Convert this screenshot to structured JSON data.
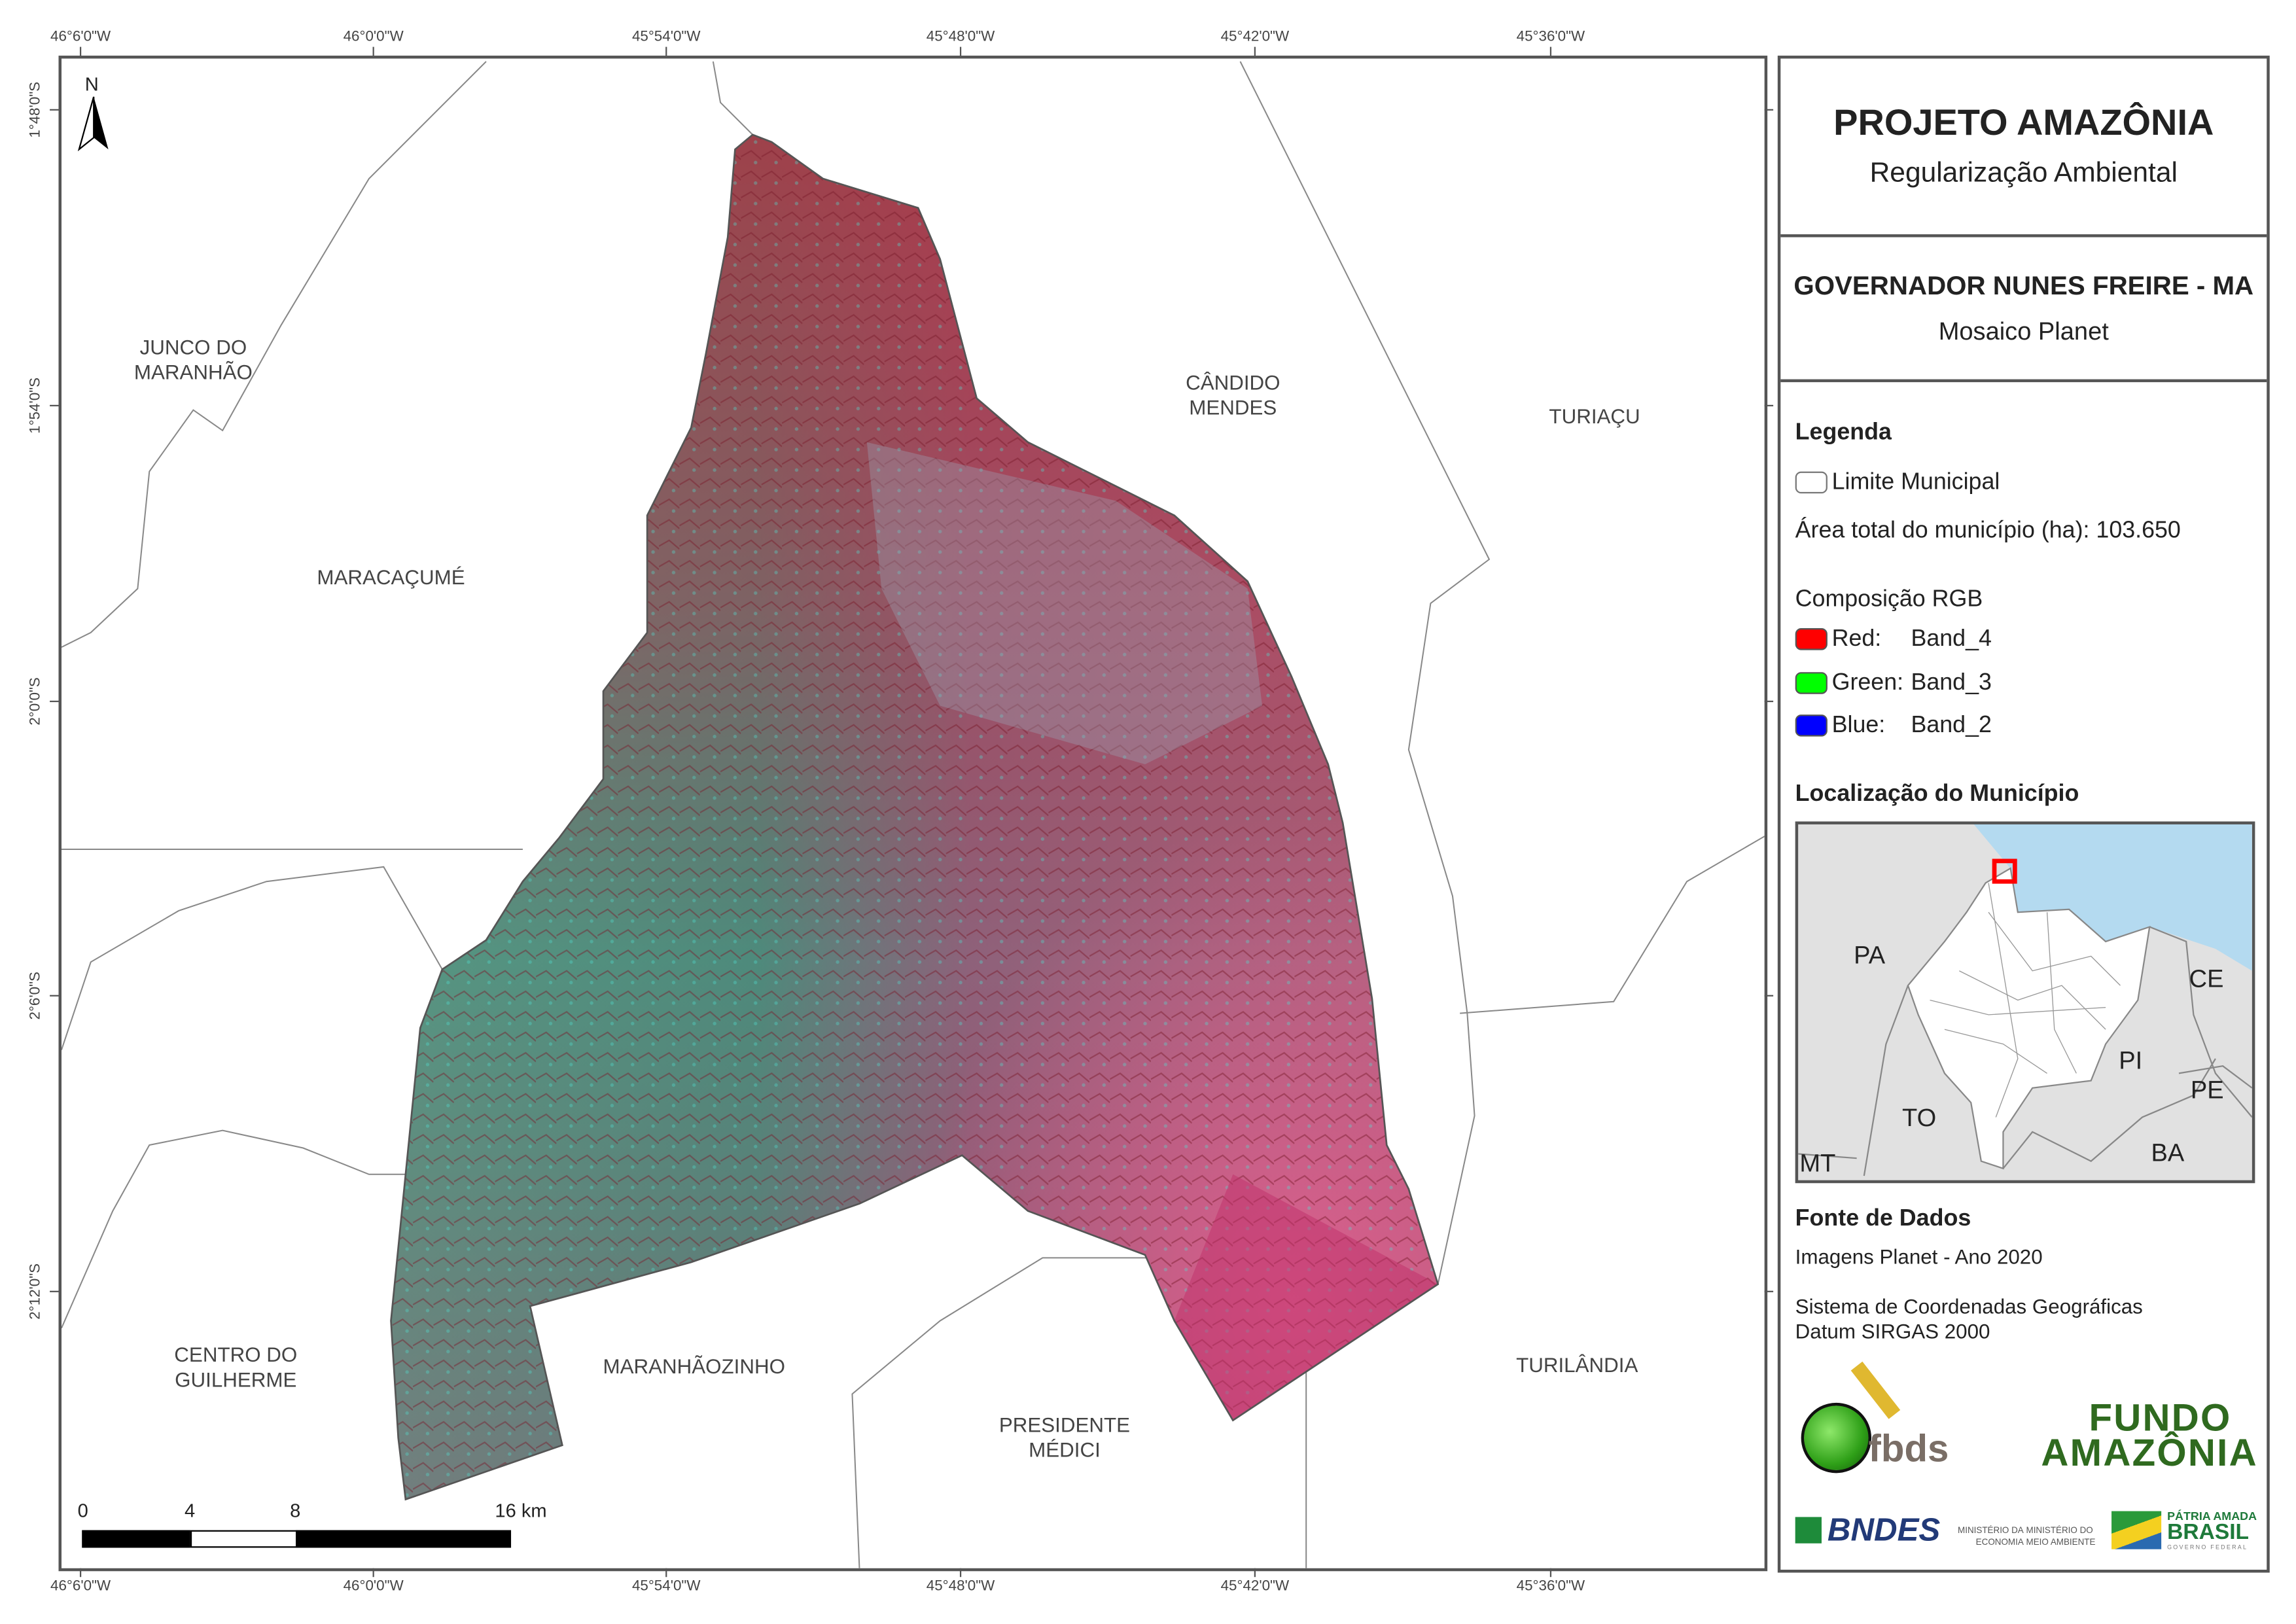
{
  "map": {
    "north_arrow_label": "N",
    "longitude_ticks": [
      "46°6'0\"W",
      "46°0'0\"W",
      "45°54'0\"W",
      "45°48'0\"W",
      "45°42'0\"W",
      "45°36'0\"W"
    ],
    "latitude_ticks": [
      "1°48'0\"S",
      "1°54'0\"S",
      "2°0'0\"S",
      "2°6'0\"S",
      "2°12'0\"S"
    ],
    "neighbor_labels": [
      {
        "line1": "JUNCO DO",
        "line2": "MARANHÃO"
      },
      {
        "line1": "CÂNDIDO",
        "line2": "MENDES"
      },
      {
        "line1": "TURIAÇU",
        "line2": ""
      },
      {
        "line1": "MARACAÇUMÉ",
        "line2": ""
      },
      {
        "line1": "CENTRO DO",
        "line2": "GUILHERME"
      },
      {
        "line1": "MARANHÃOZINHO",
        "line2": ""
      },
      {
        "line1": "PRESIDENTE",
        "line2": "MÉDICI"
      },
      {
        "line1": "TURILÂNDIA",
        "line2": ""
      }
    ],
    "scale_bar": {
      "labels": [
        "0",
        "4",
        "8",
        "16 km"
      ]
    }
  },
  "panel": {
    "title": "PROJETO AMAZÔNIA",
    "subtitle": "Regularização Ambiental",
    "municipality": "GOVERNADOR NUNES FREIRE - MA",
    "mosaic": "Mosaico Planet",
    "legend_title": "Legenda",
    "legend_limit": "Limite Municipal",
    "area_text": "Área total do município (ha): 103.650",
    "rgb_title": "Composição RGB",
    "rgb": [
      {
        "channel": "Red:",
        "band": "Band_4",
        "color": "#ff0000"
      },
      {
        "channel": "Green:",
        "band": "Band_3",
        "color": "#00ff00"
      },
      {
        "channel": "Blue:",
        "band": "Band_2",
        "color": "#0000ff"
      }
    ],
    "location_title": "Localização do Município",
    "locator_states": [
      "PA",
      "CE",
      "PI",
      "PE",
      "TO",
      "BA",
      "MT"
    ],
    "sources_title": "Fonte de Dados",
    "source_images": "Imagens Planet - Ano 2020",
    "crs_line1": "Sistema de Coordenadas Geográficas",
    "crs_line2": "Datum SIRGAS 2000",
    "logos": {
      "fbds": "fbds",
      "fundo_line1": "FUNDO",
      "fundo_line2": "AMAZÔNIA",
      "bndes": "BNDES",
      "min_economia": "MINISTÉRIO DA ECONOMIA",
      "min_meio": "MINISTÉRIO DO MEIO AMBIENTE",
      "patria1": "PÁTRIA AMADA",
      "patria2": "BRASIL",
      "governo": "GOVERNO FEDERAL"
    }
  },
  "colors": {
    "frame": "#555555",
    "boundary": "#888888",
    "highlight": "#ff0000",
    "sea": "#b4daf0",
    "states": "#e1e1e1"
  }
}
